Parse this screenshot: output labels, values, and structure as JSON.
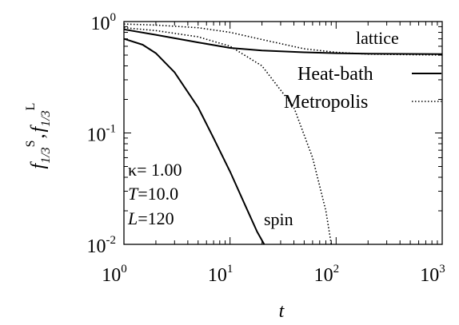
{
  "chart_data": {
    "type": "line",
    "xlabel": "t",
    "ylabel": {
      "main": "f",
      "sub": "1/3",
      "sup_s": "S",
      "sep": ",",
      "sup_l": "L"
    },
    "xscale": "log",
    "yscale": "log",
    "xlim": [
      1,
      1000
    ],
    "ylim": [
      0.01,
      1
    ],
    "x_ticks": [
      {
        "base": "10",
        "exp": "0"
      },
      {
        "base": "10",
        "exp": "1"
      },
      {
        "base": "10",
        "exp": "2"
      },
      {
        "base": "10",
        "exp": "3"
      }
    ],
    "y_ticks": [
      {
        "base": "10",
        "exp": "0"
      },
      {
        "base": "10",
        "exp": "-1"
      },
      {
        "base": "10",
        "exp": "-2"
      }
    ],
    "legend": {
      "placement": "top-right",
      "entries": [
        {
          "label": "Heat-bath",
          "style": "solid"
        },
        {
          "label": "Metropolis",
          "style": "dotted"
        }
      ]
    },
    "params": {
      "kappa": "κ= 1.00",
      "T_var": "T",
      "T_val": "=10.0",
      "L_var": "L",
      "L_val": "=120"
    },
    "annotations": {
      "lattice": "lattice",
      "spin": "spin"
    },
    "series": [
      {
        "group": "lattice",
        "method": "Heat-bath",
        "style": "solid",
        "x": [
          1,
          2,
          5,
          10,
          20,
          50,
          100,
          200,
          1000
        ],
        "y": [
          0.85,
          0.76,
          0.65,
          0.58,
          0.55,
          0.53,
          0.52,
          0.515,
          0.51
        ]
      },
      {
        "group": "lattice",
        "method": "Metropolis",
        "style": "dotted",
        "x": [
          1,
          2,
          5,
          10,
          20,
          50,
          100,
          200,
          1000
        ],
        "y": [
          0.95,
          0.93,
          0.88,
          0.8,
          0.69,
          0.57,
          0.53,
          0.51,
          0.5
        ]
      },
      {
        "group": "spin",
        "method": "Heat-bath",
        "style": "solid",
        "x": [
          1,
          1.5,
          2,
          3,
          5,
          7,
          10,
          14,
          18,
          21
        ],
        "y": [
          0.7,
          0.62,
          0.52,
          0.35,
          0.17,
          0.09,
          0.045,
          0.022,
          0.013,
          0.01
        ]
      },
      {
        "group": "spin",
        "method": "Metropolis",
        "style": "dotted",
        "x": [
          1,
          2,
          5,
          10,
          20,
          40,
          60,
          80,
          90
        ],
        "y": [
          0.88,
          0.83,
          0.73,
          0.6,
          0.4,
          0.17,
          0.06,
          0.02,
          0.01
        ]
      }
    ]
  }
}
